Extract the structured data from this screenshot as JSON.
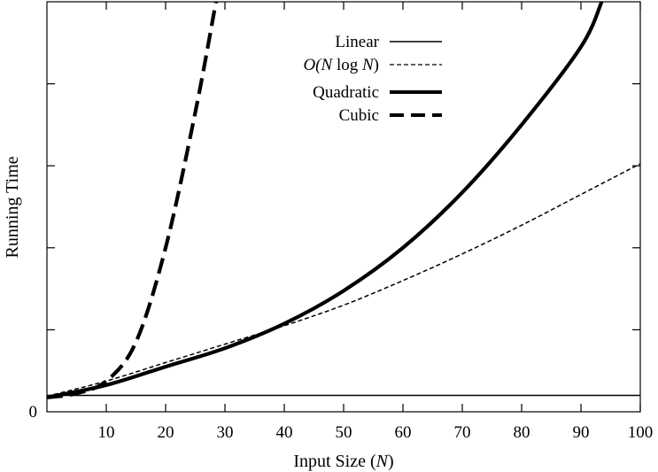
{
  "chart_data": {
    "type": "line",
    "title": "",
    "xlabel": "Input Size (N)",
    "ylabel": "Running Time",
    "xlim": [
      0,
      100
    ],
    "ylim": [
      0,
      100
    ],
    "x_ticks": [
      10,
      20,
      30,
      40,
      50,
      60,
      70,
      80,
      90,
      100
    ],
    "y_tick_label": "0",
    "legend_position": "top-center",
    "grid": false,
    "series": [
      {
        "name": "Linear",
        "style": "thin-solid",
        "x": [
          0,
          10,
          20,
          30,
          40,
          50,
          60,
          70,
          80,
          90,
          100
        ],
        "y": [
          4.0,
          4.0,
          4.0,
          4.0,
          4.0,
          4.0,
          4.0,
          4.0,
          4.0,
          4.0,
          4.0
        ]
      },
      {
        "name": "O(N log N)",
        "style": "thin-dashed",
        "x": [
          0,
          10,
          20,
          30,
          40,
          50,
          60,
          70,
          80,
          90,
          100
        ],
        "y": [
          3.8,
          7.5,
          12.0,
          16.5,
          21.0,
          26.0,
          32.0,
          38.5,
          45.5,
          53.0,
          60.5
        ]
      },
      {
        "name": "Quadratic",
        "style": "thick-solid",
        "x": [
          0,
          10,
          20,
          30,
          40,
          50,
          60,
          70,
          80,
          90,
          93.5
        ],
        "y": [
          3.5,
          6.5,
          11.0,
          15.5,
          21.5,
          29.5,
          40.0,
          53.5,
          70.0,
          89.0,
          100.0
        ]
      },
      {
        "name": "Cubic",
        "style": "thick-dashed",
        "x": [
          0,
          5,
          10,
          15,
          20,
          25,
          28.5
        ],
        "y": [
          3.5,
          4.5,
          7.5,
          17.0,
          40.0,
          73.0,
          100.0
        ]
      }
    ]
  },
  "legend": {
    "linear": "Linear",
    "nlogn_prefix": "O(",
    "nlogn_n1": "N",
    "nlogn_log": " log ",
    "nlogn_n2": "N",
    "nlogn_suffix": ")",
    "quadratic": "Quadratic",
    "cubic": "Cubic"
  },
  "axes": {
    "xlabel_prefix": "Input Size (",
    "xlabel_var": "N",
    "xlabel_suffix": ")",
    "ylabel": "Running Time"
  }
}
